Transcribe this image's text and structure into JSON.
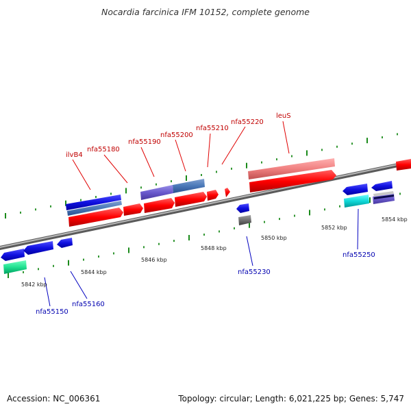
{
  "header": {
    "title": "Nocardia farcinica IFM 10152, complete genome"
  },
  "footer": {
    "accession": "Accession: NC_006361",
    "summary": "Topology: circular; Length: 6,021,225 bp; Genes: 5,747"
  },
  "colors": {
    "backbone": "#8a8a8a",
    "tick": "#1a8a1a",
    "gene_red": "#ff0000",
    "gene_blue": "#1010e0",
    "label_red": "#c00000",
    "label_blue": "#0000b0"
  },
  "kbp_labels": [
    "5842 kbp",
    "5844 kbp",
    "5846 kbp",
    "5848 kbp",
    "5850 kbp",
    "5852 kbp",
    "5854 kbp"
  ],
  "top_labels": [
    "ilvB4",
    "nfa55180",
    "nfa55190",
    "nfa55200",
    "nfa55210",
    "nfa55220",
    "leuS"
  ],
  "bottom_labels": [
    "nfa55150",
    "nfa55160",
    "nfa55230",
    "nfa55250"
  ]
}
